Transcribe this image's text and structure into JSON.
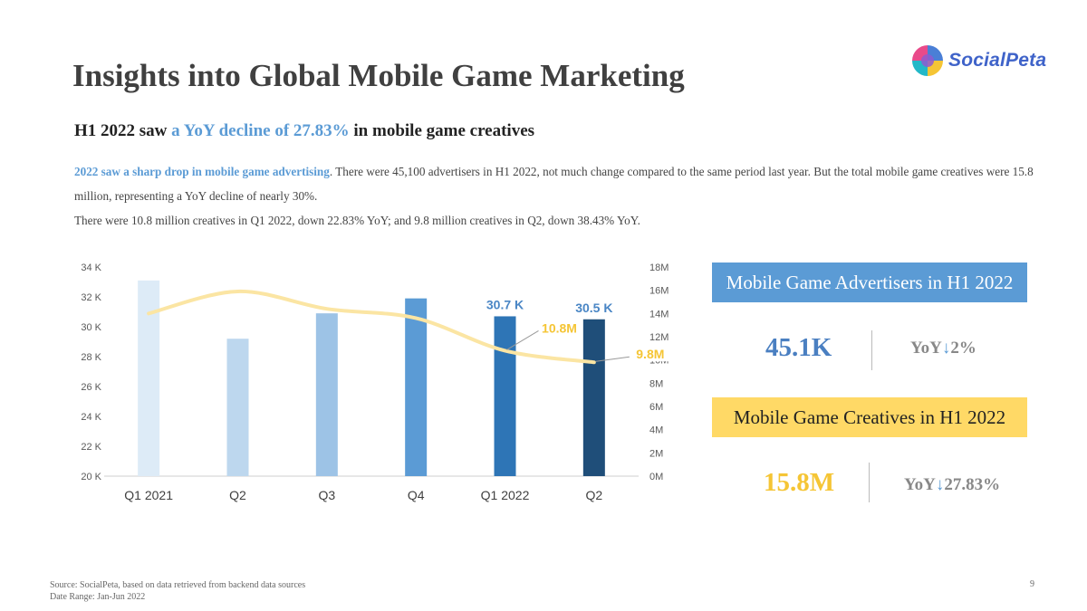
{
  "title": "Insights into Global Mobile Game Marketing",
  "logo": {
    "text": "SocialPeta",
    "colors": [
      "#e94a8a",
      "#4a7fd6",
      "#22b8c8",
      "#f5c535"
    ]
  },
  "subtitle": {
    "prefix": "H1 2022 saw ",
    "highlight": "a YoY decline of 27.83%",
    "suffix": " in mobile game creatives"
  },
  "description": {
    "highlight": "2022 saw a sharp drop in mobile game advertising",
    "line1_rest": ". There were 45,100 advertisers in H1 2022, not much change compared to the same period last year. But the total mobile game creatives were 15.8 million, representing a YoY decline of nearly 30%.",
    "line2": "There were 10.8 million creatives in Q1 2022, down 22.83% YoY; and 9.8 million creatives in Q2, down 38.43% YoY."
  },
  "chart_data": {
    "type": "bar+line",
    "categories": [
      "Q1 2021",
      "Q2",
      "Q3",
      "Q4",
      "Q1 2022",
      "Q2"
    ],
    "bar_series": {
      "name": "Mobile Game Advertisers",
      "values": [
        33.1,
        29.2,
        30.9,
        31.9,
        30.7,
        30.5
      ],
      "labels": [
        "",
        "",
        "",
        "",
        "30.7 K",
        "30.5 K"
      ],
      "colors": [
        "#ddebf7",
        "#bdd7ee",
        "#9dc3e6",
        "#5b9bd5",
        "#2e75b6",
        "#1f4e79"
      ]
    },
    "line_series": {
      "name": "Mobile Game Creatives",
      "values": [
        14,
        15.9,
        14.4,
        13.6,
        10.8,
        9.8
      ],
      "labels": [
        "",
        "",
        "",
        "",
        "10.8M",
        "9.8M"
      ],
      "color": "#fbe5a3",
      "label_color": "#f5c535"
    },
    "y_left": {
      "min": 20,
      "max": 34,
      "step": 2,
      "ticks": [
        "20 K",
        "22 K",
        "24 K",
        "26 K",
        "28 K",
        "30 K",
        "32 K",
        "34 K"
      ]
    },
    "y_right": {
      "min": 0,
      "max": 18,
      "step": 2,
      "ticks": [
        "0M",
        "2M",
        "4M",
        "6M",
        "8M",
        "10M",
        "12M",
        "14M",
        "16M",
        "18M"
      ]
    }
  },
  "cards": [
    {
      "title": "Mobile Game Advertisers in H1 2022",
      "value": "45.1K",
      "yoy_prefix": "YoY",
      "yoy_arrow": "↓",
      "yoy_value": "2%"
    },
    {
      "title": "Mobile Game Creatives in H1 2022",
      "value": "15.8M",
      "yoy_prefix": "YoY",
      "yoy_arrow": "↓",
      "yoy_value": "27.83%"
    }
  ],
  "footer": {
    "source": "Source: SocialPeta, based on data retrieved from backend data sources",
    "date_range": "Date Range: Jan-Jun 2022",
    "page_number": "9"
  }
}
